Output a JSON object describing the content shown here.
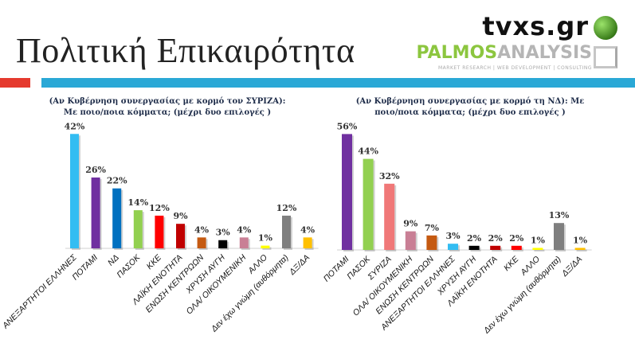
{
  "header": {
    "title": "Πολιτική Επικαιρότητα",
    "logo_tvxs": "tvxs.gr",
    "logo_palmos_a": "PALMOS",
    "logo_palmos_b": "ANALYSIS",
    "logo_palmos_sub": "MARKET RESEARCH | WEB DEVELOPMENT | CONSULTING"
  },
  "colors": {
    "accent_red": "#e53a2e",
    "accent_blue": "#2aa8d6"
  },
  "chart_data": [
    {
      "type": "bar",
      "title": "(Αν Κυβέρνηση συνεργασίας με κορμό τον ΣΥΡΙΖΑ): Με ποιο/ποια κόμματα; (μέχρι δυο επιλογές )",
      "title_line1": "(Αν Κυβέρνηση συνεργασίας με κορμό τον ΣΥΡΙΖΑ):",
      "title_line2": "Με ποιο/ποια κόμματα; (μέχρι δυο επιλογές )",
      "categories": [
        "ΑΝΕΞΑΡΤΗΤΟΙ ΕΛΛΗΝΕΣ",
        "ΠΟΤΑΜΙ",
        "ΝΔ",
        "ΠΑΣΟΚ",
        "ΚΚΕ",
        "ΛΑΪΚΗ ΕΝΟΤΗΤΑ",
        "ΕΝΩΣΗ ΚΕΝΤΡΩΩΝ",
        "ΧΡΥΣΗ ΑΥΓΗ",
        "ΟΛΑ/ ΟΙΚΟΥΜΕΝΙΚΗ",
        "ΑΛΛΟ",
        "Δεν έχω γνώμη (αυθόρμητα)",
        "ΔΞ/ΔΑ"
      ],
      "values": [
        42,
        26,
        22,
        14,
        12,
        9,
        4,
        3,
        4,
        1,
        12,
        4
      ],
      "labels": [
        "42%",
        "26%",
        "22%",
        "14%",
        "12%",
        "9%",
        "4%",
        "3%",
        "4%",
        "1%",
        "12%",
        "4%"
      ],
      "colors": [
        "#33bdf2",
        "#7030a0",
        "#0070c0",
        "#92d050",
        "#ff0000",
        "#c00000",
        "#c55a11",
        "#000000",
        "#c97f95",
        "#ffff00",
        "#7f7f7f",
        "#ffc000"
      ],
      "ylim": [
        0,
        45
      ]
    },
    {
      "type": "bar",
      "title": "(Αν Κυβέρνηση συνεργασίας με κορμό τη ΝΔ): Με ποιο/ποια κόμματα; (μέχρι δυο επιλογές )",
      "title_line1": "(Αν Κυβέρνηση συνεργασίας με κορμό τη ΝΔ): Με",
      "title_line2": "ποιο/ποια κόμματα; (μέχρι δυο επιλογές )",
      "categories": [
        "ΠΟΤΑΜΙ",
        "ΠΑΣΟΚ",
        "ΣΥΡΙΖΑ",
        "ΟΛΑ/ ΟΙΚΟΥΜΕΝΙΚΗ",
        "ΕΝΩΣΗ ΚΕΝΤΡΩΩΝ",
        "ΑΝΕΞΑΡΤΗΤΟΙ ΕΛΛΗΝΕΣ",
        "ΧΡΥΣΗ ΑΥΓΗ",
        "ΛΑΪΚΗ ΕΝΟΤΗΤΑ",
        "ΚΚΕ",
        "ΑΛΛΟ",
        "Δεν έχω γνώμη (αυθόρμητα)",
        "ΔΞ/ΔΑ"
      ],
      "values": [
        56,
        44,
        32,
        9,
        7,
        3,
        2,
        2,
        2,
        1,
        13,
        1
      ],
      "labels": [
        "56%",
        "44%",
        "32%",
        "9%",
        "7%",
        "3%",
        "2%",
        "2%",
        "2%",
        "1%",
        "13%",
        "1%"
      ],
      "colors": [
        "#7030a0",
        "#92d050",
        "#f07878",
        "#c97f95",
        "#c55a11",
        "#33bdf2",
        "#000000",
        "#c00000",
        "#ff0000",
        "#ffff00",
        "#7f7f7f",
        "#ffc000"
      ],
      "ylim": [
        0,
        60
      ]
    }
  ]
}
